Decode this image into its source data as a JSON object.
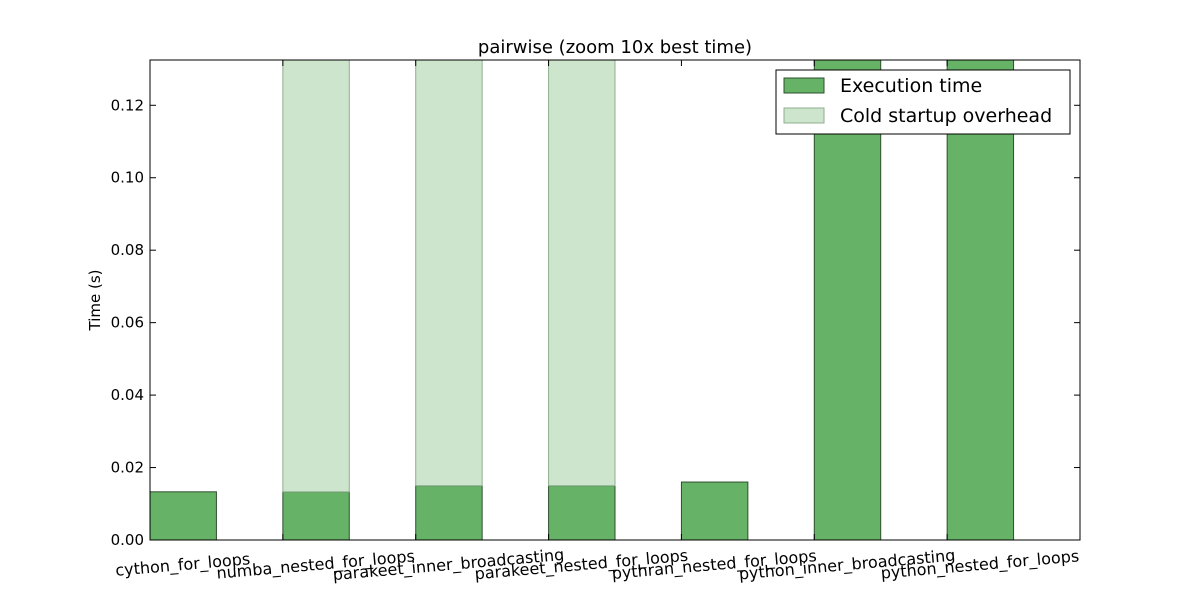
{
  "chart_data": {
    "type": "bar",
    "title": "pairwise (zoom 10x best time)",
    "xlabel": "",
    "ylabel": "Time (s)",
    "ylim": [
      0,
      0.1325
    ],
    "yticks": [
      "0.00",
      "0.02",
      "0.04",
      "0.06",
      "0.08",
      "0.10",
      "0.12"
    ],
    "stacked": true,
    "categories": [
      "cython_for_loops",
      "numba_nested_for_loops",
      "parakeet_inner_broadcasting",
      "parakeet_nested_for_loops",
      "pythran_nested_for_loops",
      "python_inner_broadcasting",
      "python_nested_for_loops"
    ],
    "series": [
      {
        "name": "Execution time",
        "color": "#66b266",
        "values": [
          0.0133,
          0.0133,
          0.015,
          0.015,
          0.016,
          0.1325,
          0.1325
        ]
      },
      {
        "name": "Cold startup overhead",
        "color": "#cce5cc",
        "values": [
          0,
          0.1192,
          0.1175,
          0.1175,
          0,
          0,
          0
        ]
      }
    ],
    "legend": "top-right",
    "grid": false
  }
}
